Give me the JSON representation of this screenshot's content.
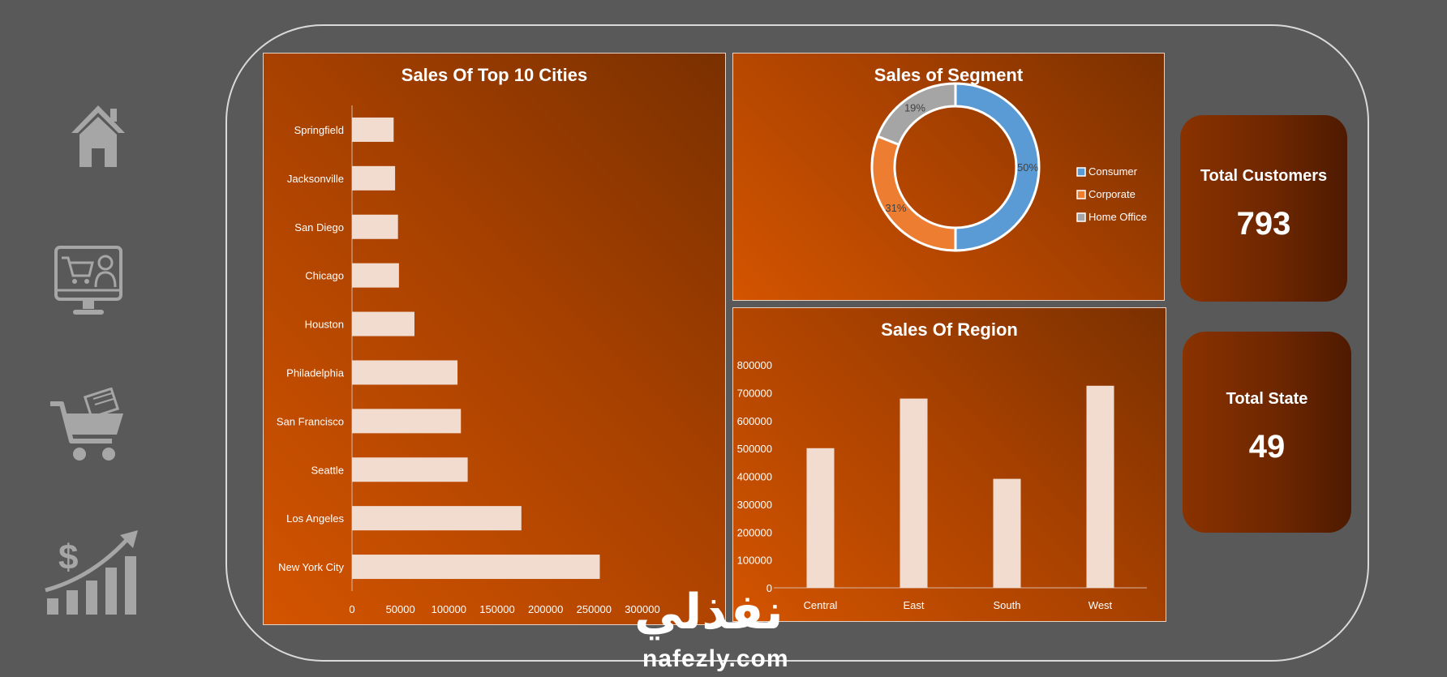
{
  "nav": {
    "items": [
      {
        "icon": "home-icon"
      },
      {
        "icon": "online-shop-icon"
      },
      {
        "icon": "shopping-cart-icon"
      },
      {
        "icon": "sales-growth-icon"
      }
    ]
  },
  "colors": {
    "background": "#595959",
    "panel_dark": "#7a3000",
    "panel_light": "#d35400",
    "bar_fill": "#f2dccf",
    "consumer": "#5b9bd5",
    "corporate": "#ed7d31",
    "home_office": "#a5a5a5"
  },
  "cities_chart": {
    "chart_data": {
      "type": "bar",
      "orientation": "horizontal",
      "title": "Sales Of Top 10 Cities",
      "categories": [
        "Springfield",
        "Jacksonville",
        "San Diego",
        "Chicago",
        "Houston",
        "Philadelphia",
        "San Francisco",
        "Seattle",
        "Los Angeles",
        "New York City"
      ],
      "values": [
        43000,
        44500,
        47500,
        48500,
        64500,
        109000,
        112500,
        119500,
        175000,
        256000
      ],
      "xlim": [
        0,
        300000
      ],
      "xticks": [
        "0",
        "50000",
        "100000",
        "150000",
        "200000",
        "250000",
        "300000"
      ],
      "grid": false,
      "legend": "none"
    }
  },
  "segment_chart": {
    "chart_data": {
      "type": "pie",
      "style": "donut",
      "title": "Sales of Segment",
      "categories": [
        "Consumer",
        "Corporate",
        "Home Office"
      ],
      "values": [
        50,
        31,
        19
      ],
      "data_labels": [
        "50%",
        "31%",
        "19%"
      ],
      "legend": "right"
    }
  },
  "region_chart": {
    "chart_data": {
      "type": "bar",
      "title": "Sales Of Region",
      "categories": [
        "Central",
        "East",
        "South",
        "West"
      ],
      "values": [
        501000,
        679000,
        391000,
        725000
      ],
      "ylim": [
        0,
        800000
      ],
      "yticks": [
        "0",
        "100000",
        "200000",
        "300000",
        "400000",
        "500000",
        "600000",
        "700000",
        "800000"
      ],
      "grid": false,
      "legend": "none"
    }
  },
  "kpis": {
    "customers": {
      "label": "Total Customers",
      "value": "793"
    },
    "states": {
      "label": "Total State",
      "value": "49"
    }
  },
  "watermark": {
    "arabic": "نفذلي",
    "latin": "nafezly.com"
  }
}
